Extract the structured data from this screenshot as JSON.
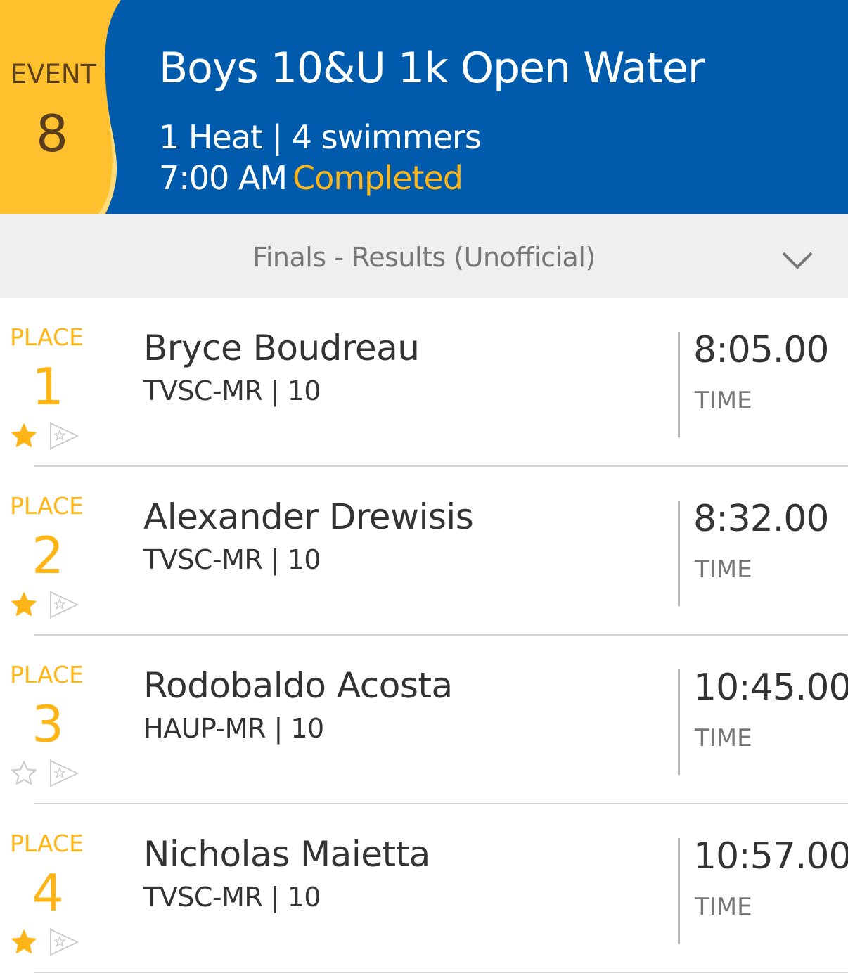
{
  "colors": {
    "header_bg": "#005BAC",
    "event_badge": "#FFC02D",
    "accent": "#FFB515",
    "section_bg": "#EFEFEF"
  },
  "event": {
    "label": "EVENT",
    "number": "8"
  },
  "header": {
    "title": "Boys 10&U 1k Open Water",
    "heats_swimmers": "1 Heat | 4 swimmers",
    "time": "7:00 AM",
    "status": "Completed"
  },
  "section": {
    "title": "Finals - Results (Unofficial)",
    "toggle_icon": "chevron-down-icon"
  },
  "results": [
    {
      "place_label": "PLACE",
      "place": "1",
      "name": "Bryce Boudreau",
      "team_age": "TVSC-MR | 10",
      "time": "8:05.00",
      "time_label": "TIME",
      "starred": true
    },
    {
      "place_label": "PLACE",
      "place": "2",
      "name": "Alexander Drewisis",
      "team_age": "TVSC-MR | 10",
      "time": "8:32.00",
      "time_label": "TIME",
      "starred": true
    },
    {
      "place_label": "PLACE",
      "place": "3",
      "name": "Rodobaldo Acosta",
      "team_age": "HAUP-MR | 10",
      "time": "10:45.00",
      "time_label": "TIME",
      "starred": false
    },
    {
      "place_label": "PLACE",
      "place": "4",
      "name": "Nicholas Maietta",
      "team_age": "TVSC-MR | 10",
      "time": "10:57.00",
      "time_label": "TIME",
      "starred": true
    }
  ]
}
